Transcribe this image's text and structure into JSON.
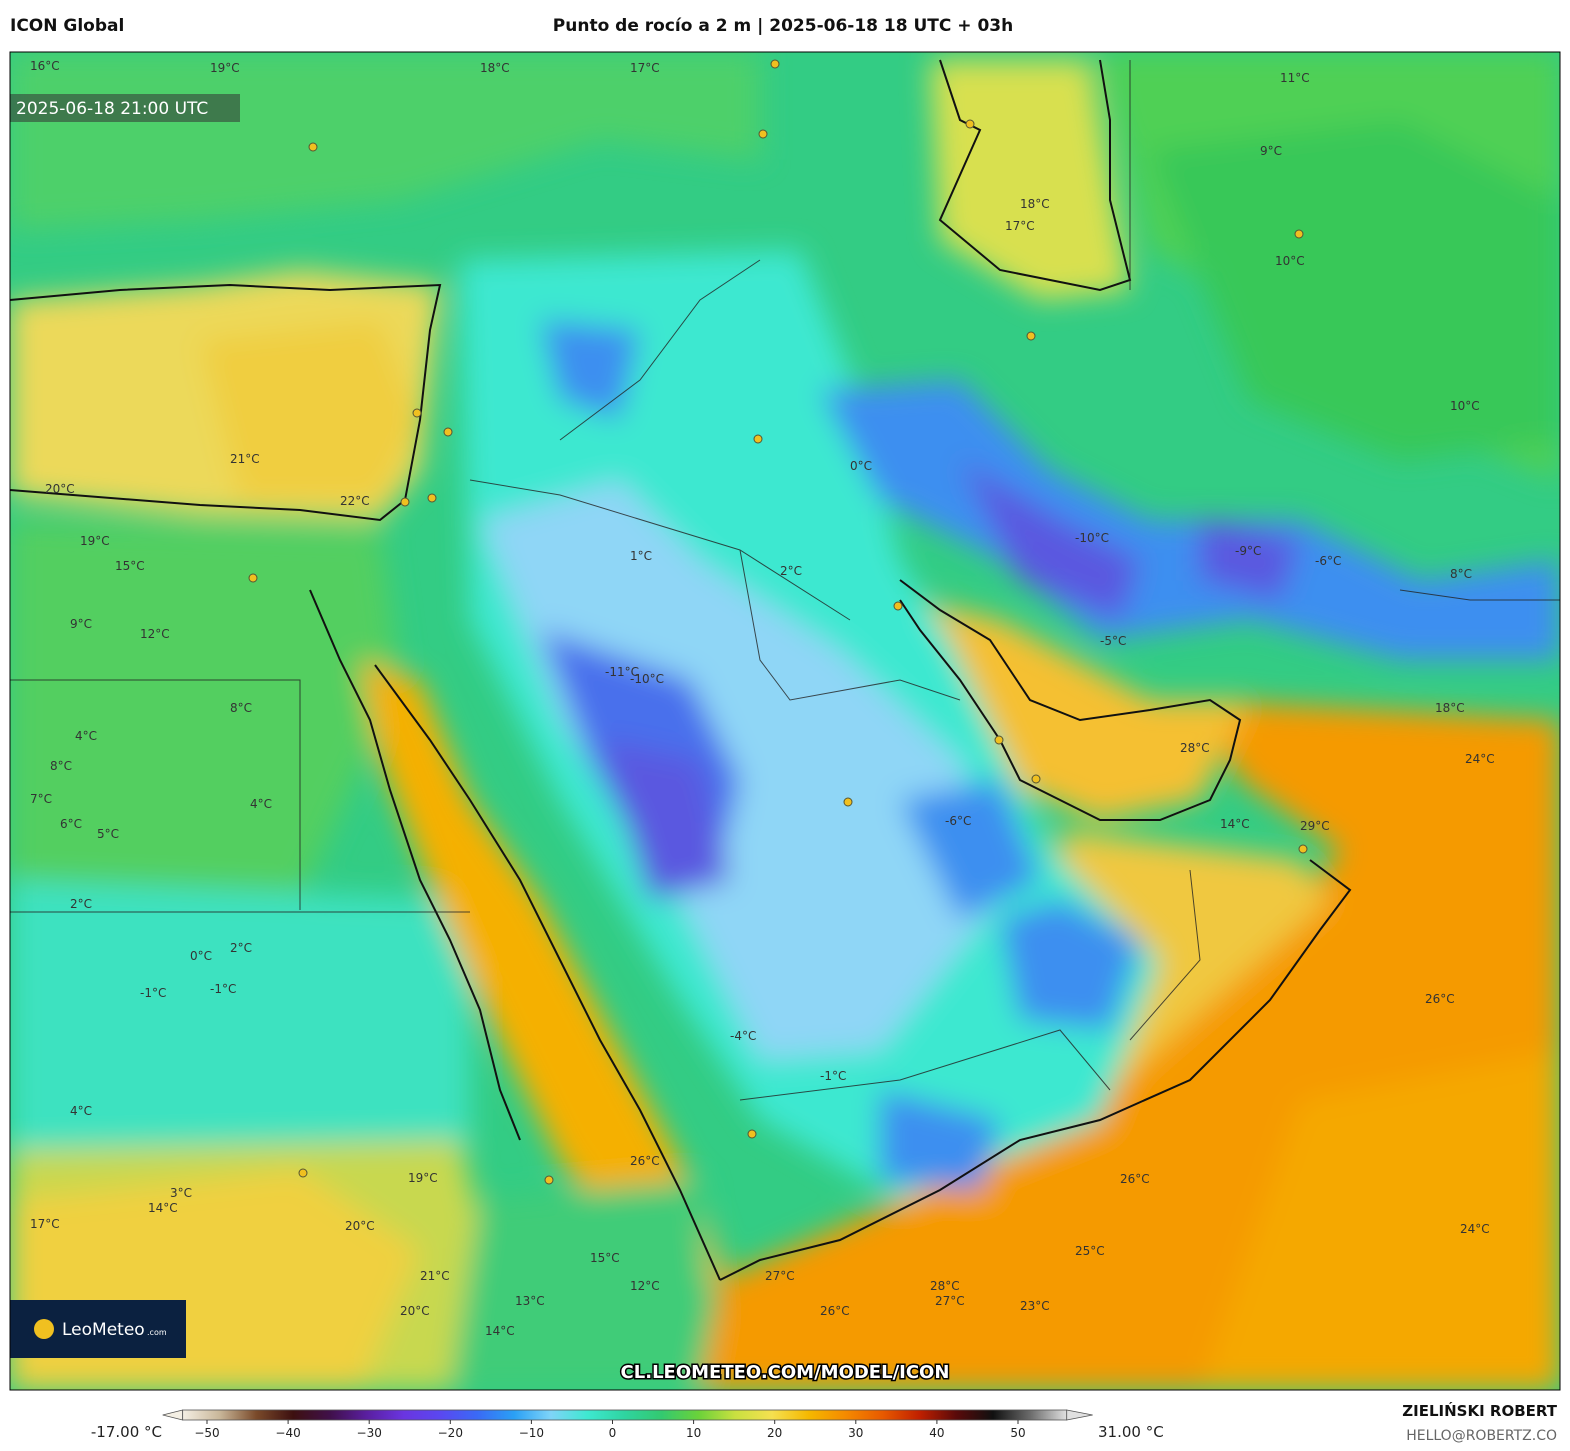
{
  "header": {
    "model": "ICON Global",
    "title": "Punto de rocío a 2 m | 2025-06-18 18 UTC + 03h"
  },
  "map": {
    "valid_time": "2025-06-18 21:00 UTC",
    "url": "CL.LEOMETEO.COM/MODEL/ICON",
    "logo": "LeoMeteo",
    "logo_suffix": ".com",
    "labels": [
      "21°C",
      "22°C",
      "20°C",
      "19°C",
      "15°C",
      "9°C",
      "12°C",
      "8°C",
      "4°C",
      "8°C",
      "7°C",
      "6°C",
      "5°C",
      "4°C",
      "2°C",
      "0°C",
      "-1°C",
      "-1°C",
      "2°C",
      "4°C",
      "3°C",
      "14°C",
      "17°C",
      "20°C",
      "21°C",
      "19°C",
      "20°C",
      "13°C",
      "14°C",
      "15°C",
      "12°C",
      "26°C",
      "27°C",
      "26°C",
      "28°C",
      "27°C",
      "23°C",
      "25°C",
      "26°C",
      "24°C",
      "26°C",
      "29°C",
      "24°C",
      "18°C",
      "14°C",
      "28°C",
      "-10°C",
      "-9°C",
      "-6°C",
      "-5°C",
      "-11°C",
      "-10°C",
      "-6°C",
      "1°C",
      "2°C",
      "0°C",
      "-1°C",
      "-4°C",
      "17°C",
      "18°C",
      "11°C",
      "9°C",
      "10°C",
      "8°C",
      "16°C",
      "19°C",
      "17°C",
      "18°C",
      "10°C"
    ]
  },
  "colorbar": {
    "min_label": "-17.00 °C",
    "max_label": "31.00 °C",
    "lim": [
      -53,
      56
    ],
    "ticks": [
      {
        "value": -50,
        "label": "−50"
      },
      {
        "value": -40,
        "label": "−40"
      },
      {
        "value": -30,
        "label": "−30"
      },
      {
        "value": -20,
        "label": "−20"
      },
      {
        "value": -10,
        "label": "−10"
      },
      0,
      10,
      20,
      30,
      40,
      50
    ],
    "colors": [
      "#f4efe4",
      "#c9b79a",
      "#7a4a2a",
      "#3d1010",
      "#40104a",
      "#5a1fa0",
      "#6a35e0",
      "#5a48f0",
      "#3a6af5",
      "#2aa0f5",
      "#7fd4f8",
      "#3ee8d0",
      "#2fd4a0",
      "#33c970",
      "#6ad23a",
      "#c9e040",
      "#f5e050",
      "#f5b800",
      "#f58a00",
      "#e85a00",
      "#c02000",
      "#5a0a0a",
      "#101010",
      "#6a6a6a",
      "#e0e0e0"
    ]
  },
  "credits": {
    "author": "ZIELIŃSKI ROBERT",
    "email": "HELLO@ROBERTZ.CO"
  }
}
